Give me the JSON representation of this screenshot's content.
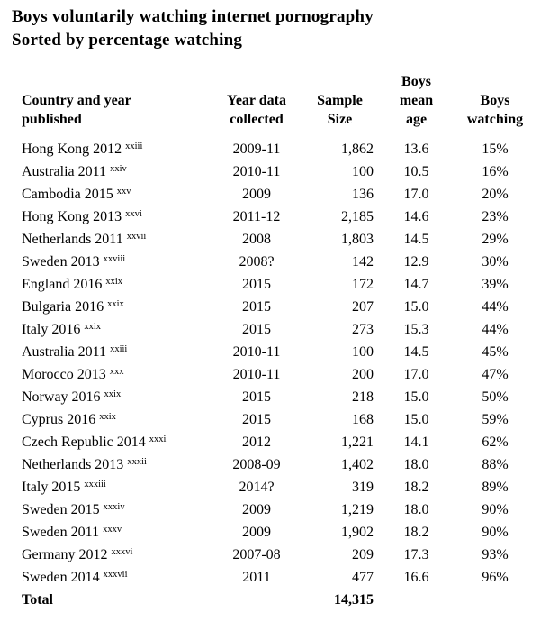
{
  "title": {
    "line1": "Boys voluntarily watching internet pornography",
    "line2": "Sorted by percentage watching"
  },
  "colors": {
    "text": "#000000",
    "background": "#ffffff"
  },
  "table": {
    "headers": {
      "country": {
        "line1": "Country and year",
        "line2": "published"
      },
      "collected": {
        "line1": "Year data",
        "line2": "collected"
      },
      "sample": {
        "line1": "Sample",
        "line2": "Size"
      },
      "age": {
        "line1": "Boys",
        "line2": "mean",
        "line3": "age"
      },
      "watching": {
        "line1": "Boys",
        "line2": "watching"
      }
    },
    "rows": [
      {
        "country": "Hong Kong 2012",
        "note": "xxiii",
        "collected": "2009-11",
        "sample": "1,862",
        "age": "13.6",
        "watching": "15%"
      },
      {
        "country": "Australia 2011",
        "note": "xxiv",
        "collected": "2010-11",
        "sample": "100",
        "age": "10.5",
        "watching": "16%"
      },
      {
        "country": "Cambodia 2015",
        "note": "xxv",
        "collected": "2009",
        "sample": "136",
        "age": "17.0",
        "watching": "20%"
      },
      {
        "country": "Hong Kong 2013",
        "note": "xxvi",
        "collected": "2011-12",
        "sample": "2,185",
        "age": "14.6",
        "watching": "23%"
      },
      {
        "country": "Netherlands 2011",
        "note": "xxvii",
        "collected": "2008",
        "sample": "1,803",
        "age": "14.5",
        "watching": "29%"
      },
      {
        "country": "Sweden 2013",
        "note": "xxviii",
        "collected": "2008?",
        "sample": "142",
        "age": "12.9",
        "watching": "30%"
      },
      {
        "country": "England 2016",
        "note": "xxix",
        "collected": "2015",
        "sample": "172",
        "age": "14.7",
        "watching": "39%"
      },
      {
        "country": "Bulgaria 2016",
        "note": "xxix",
        "collected": "2015",
        "sample": "207",
        "age": "15.0",
        "watching": "44%"
      },
      {
        "country": "Italy 2016",
        "note": "xxix",
        "collected": "2015",
        "sample": "273",
        "age": "15.3",
        "watching": "44%"
      },
      {
        "country": "Australia 2011",
        "note": "xxiii",
        "collected": "2010-11",
        "sample": "100",
        "age": "14.5",
        "watching": "45%"
      },
      {
        "country": "Morocco 2013",
        "note": "xxx",
        "collected": "2010-11",
        "sample": "200",
        "age": "17.0",
        "watching": "47%"
      },
      {
        "country": "Norway 2016",
        "note": "xxix",
        "collected": "2015",
        "sample": "218",
        "age": "15.0",
        "watching": "50%"
      },
      {
        "country": "Cyprus 2016",
        "note": "xxix",
        "collected": "2015",
        "sample": "168",
        "age": "15.0",
        "watching": "59%"
      },
      {
        "country": "Czech Republic 2014",
        "note": "xxxi",
        "collected": "2012",
        "sample": "1,221",
        "age": "14.1",
        "watching": "62%"
      },
      {
        "country": "Netherlands 2013",
        "note": "xxxii",
        "collected": "2008-09",
        "sample": "1,402",
        "age": "18.0",
        "watching": "88%"
      },
      {
        "country": "Italy 2015",
        "note": "xxxiii",
        "collected": "2014?",
        "sample": "319",
        "age": "18.2",
        "watching": "89%"
      },
      {
        "country": "Sweden 2015",
        "note": "xxxiv",
        "collected": "2009",
        "sample": "1,219",
        "age": "18.0",
        "watching": "90%"
      },
      {
        "country": "Sweden 2011",
        "note": "xxxv",
        "collected": "2009",
        "sample": "1,902",
        "age": "18.2",
        "watching": "90%"
      },
      {
        "country": "Germany 2012",
        "note": "xxxvi",
        "collected": "2007-08",
        "sample": "209",
        "age": "17.3",
        "watching": "93%"
      },
      {
        "country": "Sweden 2014",
        "note": "xxxvii",
        "collected": "2011",
        "sample": "477",
        "age": "16.6",
        "watching": "96%"
      }
    ],
    "total": {
      "label": "Total",
      "sample": "14,315"
    }
  }
}
